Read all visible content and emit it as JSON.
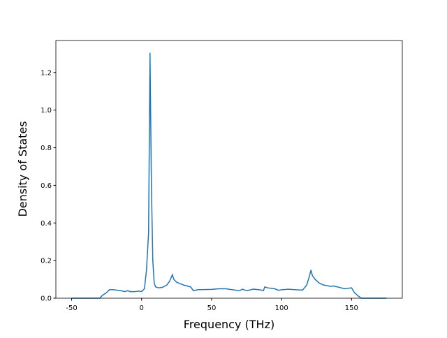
{
  "chart_data": {
    "type": "line",
    "xlabel": "Frequency (THz)",
    "ylabel": "Density of States",
    "x": [
      -50,
      -30,
      -28,
      -25,
      -23,
      -20,
      -15,
      -12,
      -10,
      -8,
      -5,
      -2,
      0,
      2,
      3.5,
      5,
      6,
      7,
      8,
      9,
      10,
      12,
      15,
      18,
      20,
      22,
      23,
      25,
      30,
      35,
      37,
      40,
      50,
      55,
      60,
      65,
      70,
      72,
      75,
      80,
      85,
      87,
      88,
      90,
      95,
      98,
      100,
      105,
      110,
      115,
      118,
      120,
      121,
      122,
      124,
      127,
      130,
      135,
      137,
      140,
      145,
      150,
      152,
      155,
      157,
      175
    ],
    "series": [
      {
        "color": "#1f77b4",
        "values": [
          0,
          0,
          0.015,
          0.03,
          0.045,
          0.045,
          0.04,
          0.035,
          0.04,
          0.035,
          0.035,
          0.038,
          0.035,
          0.05,
          0.15,
          0.35,
          1.305,
          0.6,
          0.2,
          0.08,
          0.06,
          0.055,
          0.058,
          0.07,
          0.09,
          0.125,
          0.1,
          0.085,
          0.07,
          0.06,
          0.04,
          0.045,
          0.047,
          0.05,
          0.05,
          0.045,
          0.04,
          0.048,
          0.04,
          0.048,
          0.044,
          0.04,
          0.06,
          0.055,
          0.05,
          0.042,
          0.045,
          0.048,
          0.045,
          0.043,
          0.07,
          0.12,
          0.15,
          0.12,
          0.1,
          0.08,
          0.07,
          0.063,
          0.065,
          0.06,
          0.05,
          0.055,
          0.03,
          0.01,
          0,
          0
        ]
      }
    ],
    "xlim": [
      -61.25,
      186.25
    ],
    "xticks": [
      -50,
      0,
      50,
      100,
      150
    ],
    "ylim": [
      0,
      1.37
    ],
    "yticks": [
      {
        "value": 0,
        "label": "0.0"
      },
      {
        "value": 0.2,
        "label": "0.2"
      },
      {
        "value": 0.4,
        "label": "0.4"
      },
      {
        "value": 0.6,
        "label": "0.6"
      },
      {
        "value": 0.8,
        "label": "0.8"
      },
      {
        "value": 1,
        "label": "1.0"
      },
      {
        "value": 1.2,
        "label": "1.2"
      }
    ]
  }
}
